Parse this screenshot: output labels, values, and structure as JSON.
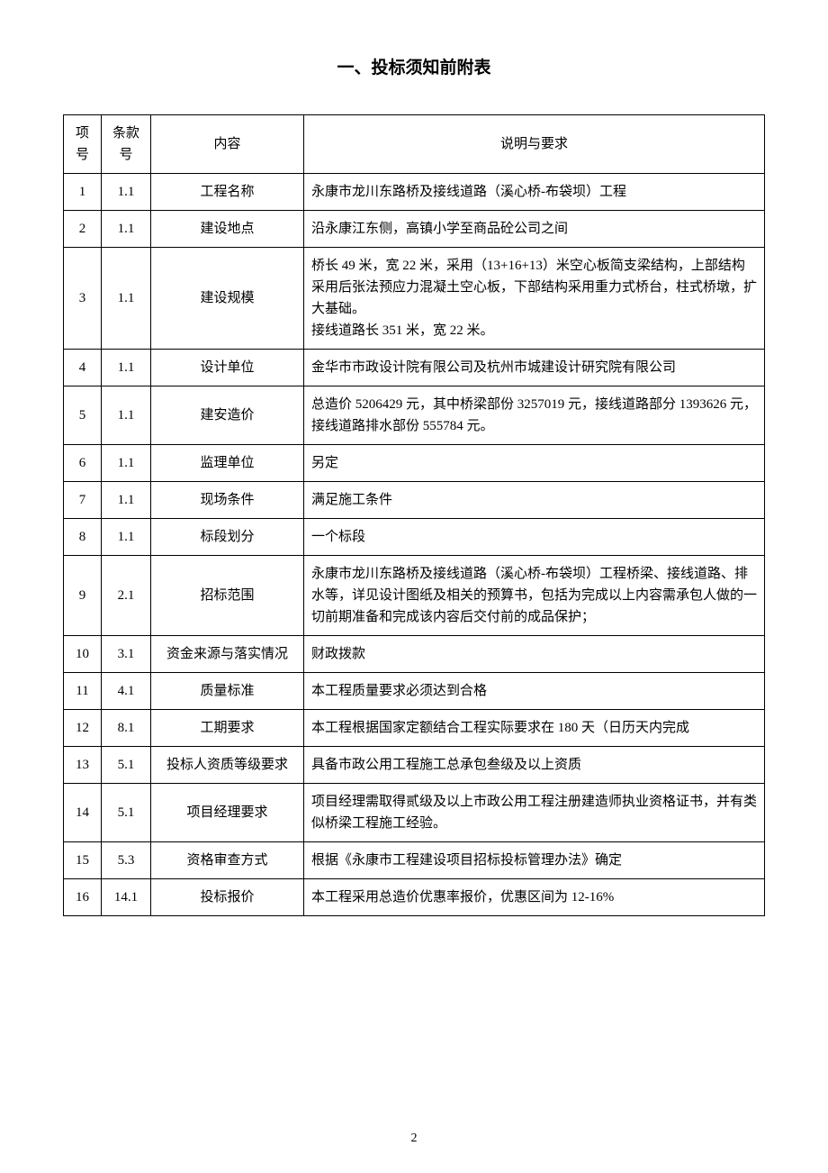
{
  "title": "一、投标须知前附表",
  "columns": [
    "项号",
    "条款号",
    "内容",
    "说明与要求"
  ],
  "rows": [
    {
      "item": "1",
      "clause": "1.1",
      "content": "工程名称",
      "desc": "永康市龙川东路桥及接线道路（溪心桥-布袋坝）工程"
    },
    {
      "item": "2",
      "clause": "1.1",
      "content": "建设地点",
      "desc": "沿永康江东侧，高镇小学至商品砼公司之间"
    },
    {
      "item": "3",
      "clause": "1.1",
      "content": "建设规模",
      "desc": "桥长 49 米，宽 22 米，采用（13+16+13）米空心板简支梁结构，上部结构采用后张法预应力混凝土空心板，下部结构采用重力式桥台，柱式桥墩，扩大基础。\n接线道路长 351 米，宽 22 米。"
    },
    {
      "item": "4",
      "clause": "1.1",
      "content": "设计单位",
      "desc": "金华市市政设计院有限公司及杭州市城建设计研究院有限公司"
    },
    {
      "item": "5",
      "clause": "1.1",
      "content": "建安造价",
      "desc": "总造价 5206429 元，其中桥梁部份 3257019 元，接线道路部分 1393626 元，接线道路排水部份 555784 元。"
    },
    {
      "item": "6",
      "clause": "1.1",
      "content": "监理单位",
      "desc": "另定"
    },
    {
      "item": "7",
      "clause": "1.1",
      "content": "现场条件",
      "desc": "满足施工条件"
    },
    {
      "item": "8",
      "clause": "1.1",
      "content": "标段划分",
      "desc": "一个标段"
    },
    {
      "item": "9",
      "clause": "2.1",
      "content": "招标范围",
      "desc": "永康市龙川东路桥及接线道路（溪心桥-布袋坝）工程桥梁、接线道路、排水等，详见设计图纸及相关的预算书，包括为完成以上内容需承包人做的一切前期准备和完成该内容后交付前的成品保护；"
    },
    {
      "item": "10",
      "clause": "3.1",
      "content": "资金来源与落实情况",
      "desc": "财政拨款"
    },
    {
      "item": "11",
      "clause": "4.1",
      "content": "质量标准",
      "desc": "本工程质量要求必须达到合格"
    },
    {
      "item": "12",
      "clause": "8.1",
      "content": "工期要求",
      "desc": "本工程根据国家定额结合工程实际要求在 180 天（日历天内完成"
    },
    {
      "item": "13",
      "clause": "5.1",
      "content": "投标人资质等级要求",
      "desc": "具备市政公用工程施工总承包叁级及以上资质"
    },
    {
      "item": "14",
      "clause": "5.1",
      "content": "项目经理要求",
      "desc": "项目经理需取得贰级及以上市政公用工程注册建造师执业资格证书，并有类似桥梁工程施工经验。"
    },
    {
      "item": "15",
      "clause": "5.3",
      "content": "资格审查方式",
      "desc": "根据《永康市工程建设项目招标投标管理办法》确定"
    },
    {
      "item": "16",
      "clause": "14.1",
      "content": "投标报价",
      "desc": "本工程采用总造价优惠率报价，优惠区间为 12-16%"
    }
  ],
  "pageNumber": "2",
  "style": {
    "font_family": "SimSun, 宋体, serif",
    "title_fontsize": 19,
    "table_fontsize": 15,
    "border_color": "#000000",
    "background_color": "#ffffff",
    "col_widths": {
      "item": 42,
      "clause": 55,
      "content": 170
    }
  }
}
